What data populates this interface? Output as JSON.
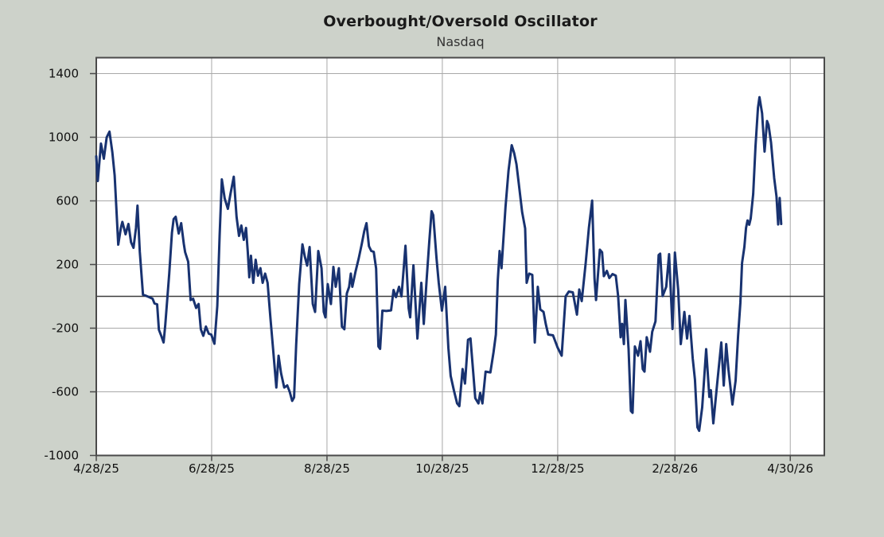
{
  "page": {
    "background_color": "#cdd2ca"
  },
  "chart_data": {
    "type": "line",
    "title": "Overbought/Oversold Oscillator",
    "subtitle": "Nasdaq",
    "legend": "none",
    "grid": true,
    "zero_line": true,
    "colors": {
      "background": "#cdd2ca",
      "plot_background": "#ffffff",
      "line": "#183270",
      "gridline": "#a8a8a8",
      "zero_line": "#3c3c3c",
      "border": "#4a4a4a",
      "text": "#111111"
    },
    "ylabel": "",
    "xlabel": "",
    "ylim": [
      -1000,
      1500
    ],
    "y_ticks": [
      1400,
      1000,
      600,
      200,
      -200,
      -600,
      -1000
    ],
    "x_unit": "days since 2025-04-28",
    "x_axis_span_days": 385,
    "x_ticks": [
      {
        "day": 0,
        "label": "4/28/25"
      },
      {
        "day": 61,
        "label": "6/28/25"
      },
      {
        "day": 122,
        "label": "8/28/25"
      },
      {
        "day": 183,
        "label": "10/28/25"
      },
      {
        "day": 244,
        "label": "12/28/25"
      },
      {
        "day": 306,
        "label": "2/28/26"
      },
      {
        "day": 367,
        "label": "4/30/26"
      }
    ],
    "points": [
      [
        0,
        880
      ],
      [
        0.8,
        725
      ],
      [
        2.5,
        960
      ],
      [
        4,
        865
      ],
      [
        5.5,
        1000
      ],
      [
        7,
        1035
      ],
      [
        8.5,
        905
      ],
      [
        9.7,
        760
      ],
      [
        10.8,
        510
      ],
      [
        11.6,
        325
      ],
      [
        13,
        430
      ],
      [
        13.8,
        468
      ],
      [
        15.5,
        390
      ],
      [
        17,
        455
      ],
      [
        18.4,
        340
      ],
      [
        19.7,
        305
      ],
      [
        21,
        430
      ],
      [
        21.8,
        570
      ],
      [
        23,
        280
      ],
      [
        24.7,
        10
      ],
      [
        26,
        5
      ],
      [
        28,
        -5
      ],
      [
        29.8,
        -15
      ],
      [
        30.8,
        -45
      ],
      [
        32.2,
        -50
      ],
      [
        33.1,
        -210
      ],
      [
        34.4,
        -250
      ],
      [
        35.6,
        -290
      ],
      [
        36.5,
        -180
      ],
      [
        37.3,
        -57
      ],
      [
        38.6,
        143
      ],
      [
        40,
        400
      ],
      [
        40.9,
        485
      ],
      [
        42,
        500
      ],
      [
        43.6,
        395
      ],
      [
        44.9,
        460
      ],
      [
        46.3,
        330
      ],
      [
        47,
        277
      ],
      [
        48.6,
        218
      ],
      [
        49.9,
        -23
      ],
      [
        51.2,
        -15
      ],
      [
        52.8,
        -73
      ],
      [
        54.1,
        -48
      ],
      [
        55.3,
        -207
      ],
      [
        56.6,
        -248
      ],
      [
        58,
        -190
      ],
      [
        59.5,
        -235
      ],
      [
        60.8,
        -240
      ],
      [
        62.5,
        -298
      ],
      [
        64,
        -60
      ],
      [
        65.2,
        380
      ],
      [
        66.4,
        735
      ],
      [
        67.9,
        615
      ],
      [
        69.6,
        550
      ],
      [
        71,
        645
      ],
      [
        72.7,
        752
      ],
      [
        74.2,
        500
      ],
      [
        75.5,
        380
      ],
      [
        76.7,
        445
      ],
      [
        78,
        355
      ],
      [
        79.2,
        430
      ],
      [
        80.1,
        280
      ],
      [
        80.9,
        120
      ],
      [
        81.8,
        255
      ],
      [
        83,
        85
      ],
      [
        84.3,
        230
      ],
      [
        85.5,
        130
      ],
      [
        86.8,
        177
      ],
      [
        88,
        85
      ],
      [
        89.3,
        143
      ],
      [
        90.6,
        85
      ],
      [
        92.2,
        -150
      ],
      [
        93.5,
        -330
      ],
      [
        95.2,
        -573
      ],
      [
        96.4,
        -373
      ],
      [
        97.7,
        -482
      ],
      [
        99.4,
        -573
      ],
      [
        101,
        -560
      ],
      [
        102.3,
        -600
      ],
      [
        103.6,
        -657
      ],
      [
        104.6,
        -635
      ],
      [
        105.7,
        -307
      ],
      [
        107.3,
        77
      ],
      [
        109,
        327
      ],
      [
        110.3,
        250
      ],
      [
        111.5,
        193
      ],
      [
        112.8,
        310
      ],
      [
        114.5,
        -48
      ],
      [
        115.7,
        -98
      ],
      [
        117.4,
        285
      ],
      [
        119.1,
        177
      ],
      [
        120.3,
        -98
      ],
      [
        121.2,
        -132
      ],
      [
        122.4,
        77
      ],
      [
        124.1,
        -48
      ],
      [
        125.4,
        185
      ],
      [
        126.6,
        60
      ],
      [
        128.3,
        177
      ],
      [
        129.9,
        -190
      ],
      [
        131.2,
        -207
      ],
      [
        132.5,
        18
      ],
      [
        133.7,
        60
      ],
      [
        134.6,
        143
      ],
      [
        135.4,
        60
      ],
      [
        137.1,
        155
      ],
      [
        138.8,
        240
      ],
      [
        140.4,
        330
      ],
      [
        141.7,
        410
      ],
      [
        142.9,
        460
      ],
      [
        144.2,
        315
      ],
      [
        145.4,
        285
      ],
      [
        146.7,
        280
      ],
      [
        148,
        175
      ],
      [
        149.2,
        -315
      ],
      [
        150.1,
        -330
      ],
      [
        151.3,
        -90
      ],
      [
        153.4,
        -92
      ],
      [
        155.9,
        -88
      ],
      [
        157.2,
        40
      ],
      [
        158.5,
        -5
      ],
      [
        160.1,
        60
      ],
      [
        161.4,
        0
      ],
      [
        163.5,
        318
      ],
      [
        165.2,
        -75
      ],
      [
        166,
        -132
      ],
      [
        167.7,
        195
      ],
      [
        169.8,
        -265
      ],
      [
        171.9,
        85
      ],
      [
        173.2,
        -173
      ],
      [
        174.8,
        120
      ],
      [
        176.1,
        343
      ],
      [
        177.3,
        535
      ],
      [
        178.2,
        510
      ],
      [
        179.9,
        240
      ],
      [
        181.1,
        85
      ],
      [
        182.8,
        -90
      ],
      [
        184.5,
        60
      ],
      [
        186.2,
        -323
      ],
      [
        187.4,
        -500
      ],
      [
        189.1,
        -590
      ],
      [
        190.8,
        -673
      ],
      [
        192,
        -690
      ],
      [
        193.7,
        -457
      ],
      [
        195,
        -548
      ],
      [
        196.6,
        -273
      ],
      [
        197.9,
        -265
      ],
      [
        199.2,
        -457
      ],
      [
        200.4,
        -640
      ],
      [
        202.1,
        -673
      ],
      [
        203,
        -607
      ],
      [
        204.2,
        -673
      ],
      [
        205.9,
        -473
      ],
      [
        208.4,
        -478
      ],
      [
        210.1,
        -350
      ],
      [
        211.3,
        -240
      ],
      [
        212.3,
        100
      ],
      [
        213.3,
        285
      ],
      [
        214.3,
        177
      ],
      [
        216.4,
        560
      ],
      [
        218,
        790
      ],
      [
        219.7,
        950
      ],
      [
        221,
        900
      ],
      [
        222.2,
        830
      ],
      [
        223.5,
        700
      ],
      [
        225.2,
        530
      ],
      [
        226.8,
        427
      ],
      [
        227.6,
        85
      ],
      [
        228.9,
        143
      ],
      [
        230.6,
        135
      ],
      [
        231.9,
        -290
      ],
      [
        233.5,
        60
      ],
      [
        234.8,
        -82
      ],
      [
        236.5,
        -98
      ],
      [
        237.7,
        -173
      ],
      [
        239,
        -240
      ],
      [
        241.5,
        -245
      ],
      [
        244,
        -323
      ],
      [
        246.1,
        -373
      ],
      [
        248.2,
        0
      ],
      [
        249.9,
        30
      ],
      [
        252,
        25
      ],
      [
        254.2,
        -115
      ],
      [
        255.4,
        43
      ],
      [
        256.7,
        -30
      ],
      [
        258.8,
        210
      ],
      [
        260.5,
        430
      ],
      [
        262.2,
        602
      ],
      [
        263.5,
        110
      ],
      [
        264.3,
        -23
      ],
      [
        266.3,
        293
      ],
      [
        267.5,
        277
      ],
      [
        268.4,
        127
      ],
      [
        270,
        160
      ],
      [
        271.3,
        115
      ],
      [
        273,
        140
      ],
      [
        274.7,
        130
      ],
      [
        276,
        0
      ],
      [
        277.3,
        -257
      ],
      [
        278.1,
        -173
      ],
      [
        279,
        -300
      ],
      [
        279.8,
        -23
      ],
      [
        281.5,
        -332
      ],
      [
        282.7,
        -720
      ],
      [
        283.6,
        -732
      ],
      [
        284.8,
        -315
      ],
      [
        286.5,
        -373
      ],
      [
        287.8,
        -282
      ],
      [
        289,
        -457
      ],
      [
        289.9,
        -473
      ],
      [
        291.1,
        -257
      ],
      [
        292.8,
        -348
      ],
      [
        294,
        -223
      ],
      [
        295.7,
        -157
      ],
      [
        297.4,
        260
      ],
      [
        298.2,
        268
      ],
      [
        299.5,
        2
      ],
      [
        301.4,
        60
      ],
      [
        302.9,
        265
      ],
      [
        304.7,
        -205
      ],
      [
        306,
        275
      ],
      [
        307.7,
        43
      ],
      [
        309.1,
        -300
      ],
      [
        311,
        -98
      ],
      [
        312.4,
        -265
      ],
      [
        313.7,
        -123
      ],
      [
        315.4,
        -390
      ],
      [
        316.6,
        -523
      ],
      [
        317.9,
        -823
      ],
      [
        318.8,
        -845
      ],
      [
        320.4,
        -698
      ],
      [
        322.5,
        -332
      ],
      [
        324.2,
        -632
      ],
      [
        325,
        -590
      ],
      [
        326.3,
        -798
      ],
      [
        328.4,
        -540
      ],
      [
        330.5,
        -290
      ],
      [
        331.8,
        -560
      ],
      [
        333.1,
        -300
      ],
      [
        334.3,
        -460
      ],
      [
        336.4,
        -680
      ],
      [
        338.1,
        -530
      ],
      [
        339.4,
        -250
      ],
      [
        340.6,
        -40
      ],
      [
        341.5,
        210
      ],
      [
        342.7,
        310
      ],
      [
        343.6,
        430
      ],
      [
        344.4,
        477
      ],
      [
        345.3,
        450
      ],
      [
        346.1,
        490
      ],
      [
        347.4,
        643
      ],
      [
        348.6,
        943
      ],
      [
        349.9,
        1185
      ],
      [
        350.7,
        1252
      ],
      [
        352.1,
        1150
      ],
      [
        353.4,
        910
      ],
      [
        354.7,
        1102
      ],
      [
        355.5,
        1077
      ],
      [
        356.8,
        968
      ],
      [
        357.6,
        860
      ],
      [
        358.5,
        743
      ],
      [
        359.7,
        627
      ],
      [
        360.6,
        452
      ],
      [
        361.4,
        618
      ],
      [
        362.2,
        455
      ]
    ]
  }
}
